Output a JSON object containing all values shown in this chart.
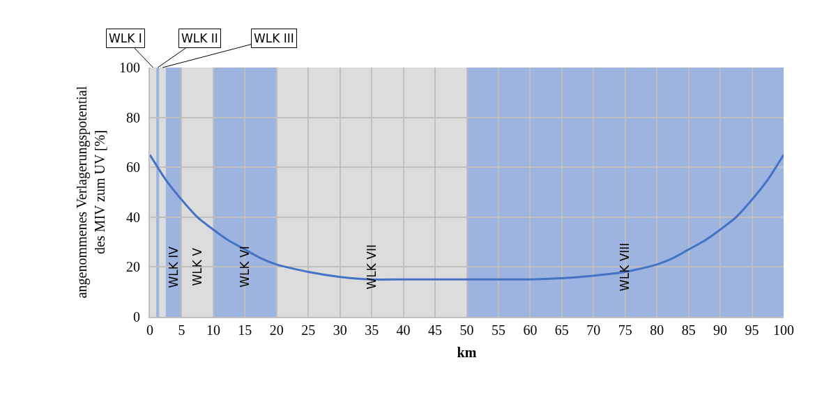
{
  "chart_data": {
    "type": "line",
    "xlabel": "km",
    "ylabel": "angenommenes Verlagerungspotential\ndes MIV zum UV [%]",
    "x": [
      0,
      2.5,
      5,
      7.5,
      10,
      12.5,
      15,
      17.5,
      20,
      25,
      30,
      35,
      40,
      45,
      50,
      55,
      60,
      65,
      70,
      75,
      80,
      82.5,
      85,
      87.5,
      90,
      92.5,
      95,
      97.5,
      100
    ],
    "series": [
      {
        "color": "#4472c4",
        "values": [
          65,
          55,
          47,
          40,
          35,
          30.5,
          27,
          23.5,
          21,
          18,
          16,
          15,
          15,
          15,
          15,
          15,
          15,
          15.5,
          16.5,
          18,
          21,
          23.5,
          27,
          30.5,
          35,
          40,
          47,
          55,
          65
        ]
      }
    ],
    "xlim": [
      0,
      100
    ],
    "xticks": [
      0,
      5,
      10,
      15,
      20,
      25,
      30,
      35,
      40,
      45,
      50,
      55,
      60,
      65,
      70,
      75,
      80,
      85,
      90,
      95,
      100
    ],
    "ylim": [
      0,
      100
    ],
    "yticks": [
      0,
      20,
      40,
      60,
      80,
      100
    ],
    "grid": true,
    "marker": "none",
    "line_style": "solid",
    "bands": [
      {
        "axis": "x",
        "from": 0,
        "to": 1,
        "label": "WLK I",
        "color": "#dcdcdc"
      },
      {
        "axis": "x",
        "from": 1,
        "to": 1.5,
        "label": "WLK II",
        "color": "#9cb4df"
      },
      {
        "axis": "x",
        "from": 1.5,
        "to": 2.5,
        "label": "WLK III",
        "color": "#dcdcdc"
      },
      {
        "axis": "x",
        "from": 2.5,
        "to": 5,
        "label": "WLK IV",
        "color": "#9cb4df"
      },
      {
        "axis": "x",
        "from": 5,
        "to": 10,
        "label": "WLK V",
        "color": "#dcdcdc"
      },
      {
        "axis": "x",
        "from": 10,
        "to": 20,
        "label": "WLK VI",
        "color": "#9cb4df"
      },
      {
        "axis": "x",
        "from": 20,
        "to": 50,
        "label": "WLK VII",
        "color": "#dcdcdc"
      },
      {
        "axis": "x",
        "from": 50,
        "to": 100,
        "label": "WLK VIII",
        "color": "#9cb4df"
      }
    ]
  }
}
